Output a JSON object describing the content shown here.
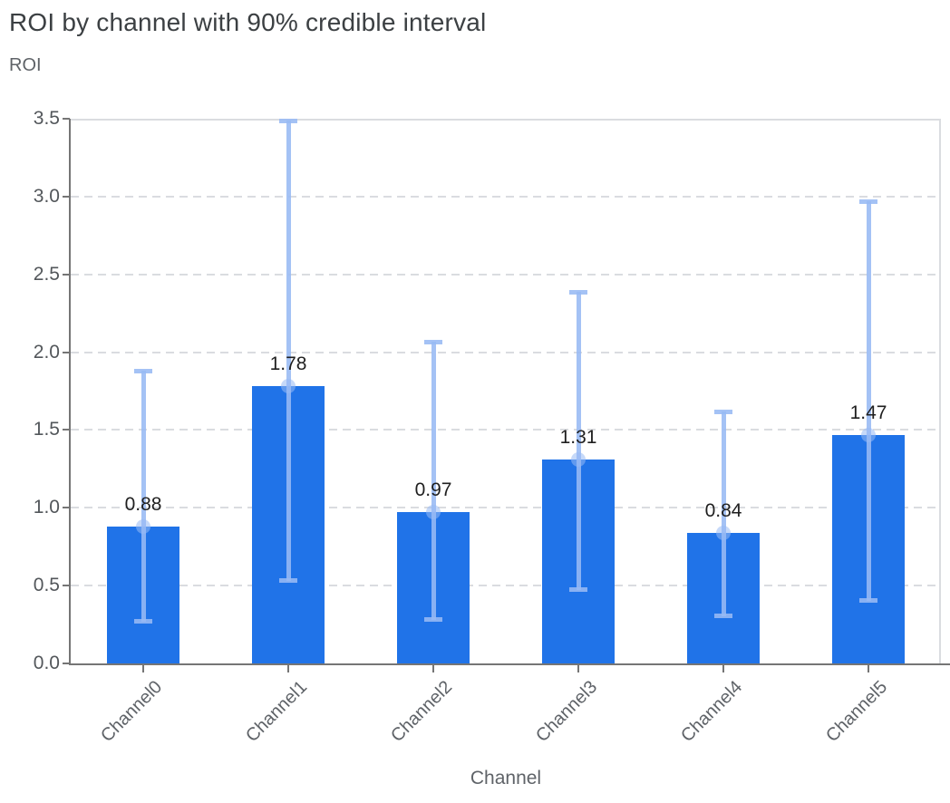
{
  "chart_data": {
    "type": "bar",
    "title": "ROI by channel with 90% credible interval",
    "ylabel": "ROI",
    "xlabel": "Channel",
    "ci_level": "90%",
    "categories": [
      "Channel0",
      "Channel1",
      "Channel2",
      "Channel3",
      "Channel4",
      "Channel5"
    ],
    "values": [
      0.88,
      1.78,
      0.97,
      1.31,
      0.84,
      1.47
    ],
    "value_labels": [
      "0.88",
      "1.78",
      "0.97",
      "1.31",
      "0.84",
      "1.47"
    ],
    "ci_low": [
      0.27,
      0.53,
      0.28,
      0.47,
      0.3,
      0.4
    ],
    "ci_high": [
      1.88,
      3.49,
      2.07,
      2.39,
      1.62,
      2.97
    ],
    "ylim": [
      0,
      3.5
    ],
    "yticks": [
      0,
      0.5,
      1,
      1.5,
      2,
      2.5,
      3,
      3.5
    ],
    "ytick_labels": [
      "0.0",
      "0.5",
      "1.0",
      "1.5",
      "2.0",
      "2.5",
      "3.0",
      "3.5"
    ],
    "grid": "horizontal-dashed",
    "legend": "none",
    "colors": {
      "bar": "#2073E8",
      "interval": "rgba(151,186,244,0.88)",
      "marker": "rgba(151,186,244,0.55)",
      "title_text": "#3C4043",
      "axis_text": "#5F6368",
      "tick_text": "#53575B",
      "value_text": "#1F1F1F",
      "gridline": "#DADCE0",
      "axis_line": "#757575"
    }
  }
}
